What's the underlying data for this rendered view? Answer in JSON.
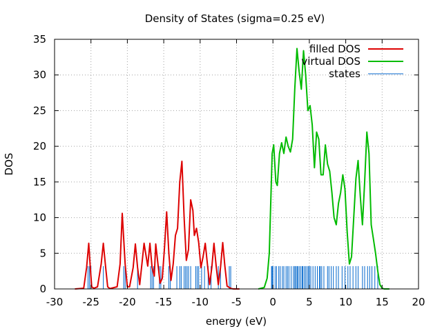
{
  "chart_data": {
    "type": "line",
    "title": "Density of States (sigma=0.25 eV)",
    "xlabel": "energy (eV)",
    "ylabel": "DOS",
    "xlim": [
      -30,
      20
    ],
    "ylim": [
      0,
      35
    ],
    "xticks": [
      -30,
      -25,
      -20,
      -15,
      -10,
      -5,
      0,
      5,
      10,
      15,
      20
    ],
    "yticks": [
      0,
      5,
      10,
      15,
      20,
      25,
      30,
      35
    ],
    "grid": true,
    "legend_position": "top-right",
    "series": [
      {
        "name": "filled DOS",
        "color": "#dd0000",
        "x": [
          -27.2,
          -26.0,
          -25.6,
          -25.3,
          -25.1,
          -24.9,
          -24.6,
          -24.1,
          -23.6,
          -23.3,
          -23.0,
          -22.7,
          -22.4,
          -21.4,
          -21.0,
          -20.7,
          -20.3,
          -20.0,
          -19.7,
          -19.2,
          -18.9,
          -18.6,
          -18.3,
          -18.0,
          -17.7,
          -17.2,
          -16.9,
          -16.6,
          -16.3,
          -16.1,
          -15.8,
          -15.5,
          -15.2,
          -14.9,
          -14.6,
          -14.3,
          -14.0,
          -13.7,
          -13.4,
          -13.1,
          -12.8,
          -12.5,
          -12.2,
          -11.9,
          -11.6,
          -11.3,
          -11.0,
          -10.8,
          -10.5,
          -10.2,
          -9.9,
          -9.6,
          -9.3,
          -9.0,
          -8.7,
          -8.4,
          -8.1,
          -7.8,
          -7.5,
          -7.2,
          -6.9,
          -6.6,
          -6.3,
          -6.0,
          -5.7,
          -5.4,
          -5.1,
          -4.6
        ],
        "y": [
          0,
          0.1,
          3.0,
          6.4,
          3.2,
          0.3,
          0.1,
          0.3,
          3.5,
          6.4,
          3.2,
          0.3,
          0.05,
          0.3,
          3.5,
          10.6,
          3.5,
          0.3,
          0.3,
          3.0,
          6.3,
          3.0,
          0.6,
          3.5,
          6.4,
          3.2,
          6.4,
          3.0,
          1.8,
          6.3,
          3.5,
          0.8,
          1.5,
          5.8,
          10.8,
          5.0,
          1.2,
          3.5,
          7.5,
          8.5,
          15.0,
          17.9,
          10.0,
          4.0,
          5.5,
          12.5,
          11.0,
          7.5,
          8.5,
          6.5,
          3.0,
          4.5,
          6.4,
          3.5,
          0.6,
          3.0,
          6.4,
          3.2,
          0.6,
          3.0,
          6.5,
          3.2,
          0.4,
          0.2,
          0.05,
          0,
          0,
          0
        ]
      },
      {
        "name": "virtual DOS",
        "color": "#00bb00",
        "x": [
          -2.0,
          -1.2,
          -0.8,
          -0.5,
          -0.3,
          -0.1,
          0.1,
          0.4,
          0.6,
          0.9,
          1.2,
          1.5,
          1.8,
          2.1,
          2.4,
          2.7,
          3.0,
          3.3,
          3.6,
          3.9,
          4.2,
          4.5,
          4.8,
          5.1,
          5.4,
          5.7,
          6.0,
          6.3,
          6.6,
          6.9,
          7.2,
          7.5,
          7.8,
          8.1,
          8.4,
          8.7,
          9.0,
          9.3,
          9.6,
          9.9,
          10.2,
          10.5,
          10.8,
          11.1,
          11.4,
          11.7,
          12.0,
          12.3,
          12.6,
          12.9,
          13.2,
          13.5,
          13.8,
          14.1,
          14.4,
          14.7,
          15.0,
          15.3,
          15.6,
          16.0
        ],
        "y": [
          0,
          0.2,
          1.5,
          5.0,
          12.0,
          19.0,
          20.2,
          15.0,
          14.5,
          19.0,
          20.5,
          19.0,
          21.3,
          20.0,
          19.2,
          21.0,
          28.0,
          33.7,
          30.5,
          28.0,
          33.4,
          30.0,
          25.0,
          25.7,
          23.0,
          17.0,
          22.0,
          21.0,
          16.0,
          16.0,
          20.2,
          17.5,
          16.5,
          13.5,
          10.0,
          9.0,
          12.0,
          13.5,
          16.0,
          14.0,
          8.0,
          3.5,
          4.5,
          10.0,
          15.5,
          18.0,
          13.0,
          9.0,
          15.0,
          22.0,
          19.0,
          9.0,
          7.0,
          5.0,
          2.5,
          0.6,
          0.1,
          0,
          0,
          0
        ]
      }
    ],
    "states": {
      "name": "states",
      "color": "#0066cc",
      "height": 3.2,
      "filled": [
        -25.4,
        -25.2,
        -25.0,
        -23.3,
        -20.5,
        -20.3,
        -18.6,
        -16.8,
        -16.6,
        -16.4,
        -15.6,
        -15.4,
        -14.3,
        -14.1,
        -13.2,
        -12.8,
        -12.6,
        -12.2,
        -12.0,
        -11.8,
        -11.6,
        -11.3,
        -10.6,
        -10.4,
        -10.2,
        -9.8,
        -9.4,
        -8.9,
        -8.5,
        -7.5,
        -7.2,
        -6.0,
        -5.8
      ],
      "virtual": [
        -0.2,
        -0.1,
        0.0,
        0.3,
        0.5,
        0.8,
        1.0,
        1.3,
        1.5,
        1.8,
        2.0,
        2.2,
        2.5,
        2.8,
        3.0,
        3.1,
        3.3,
        3.4,
        3.6,
        3.8,
        4.0,
        4.1,
        4.3,
        4.5,
        4.7,
        4.9,
        5.0,
        5.2,
        5.5,
        5.8,
        6.1,
        6.4,
        6.5,
        6.7,
        7.0,
        7.5,
        7.7,
        8.0,
        8.3,
        8.7,
        9.0,
        9.5,
        9.9,
        10.3,
        10.6,
        11.0,
        11.4,
        11.7,
        12.3,
        12.6,
        13.0,
        13.3,
        13.6,
        14.0,
        14.4
      ]
    }
  }
}
